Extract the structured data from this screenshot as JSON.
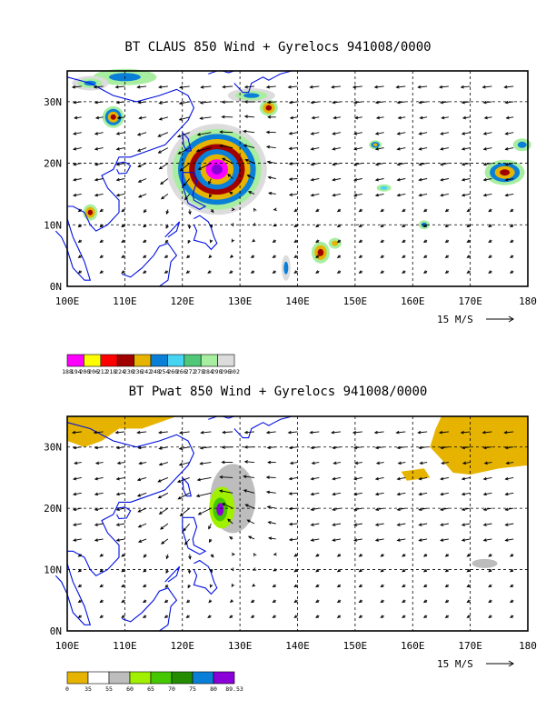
{
  "panels": [
    {
      "title": "BT CLAUS 850 Wind + Gyrelocs 941008/0000",
      "lat_labels": [
        "30N",
        "20N",
        "10N",
        "0N"
      ],
      "lon_labels": [
        "100E",
        "110E",
        "120E",
        "130E",
        "140E",
        "150E",
        "160E",
        "170E",
        "180"
      ],
      "scale_label": "15 M/S",
      "colorbar": {
        "colors": [
          "#ff00ff",
          "#ffff00",
          "#ff0000",
          "#a00000",
          "#e6b400",
          "#0a7fd8",
          "#46d4f2",
          "#50c878",
          "#a8eea0",
          "#dcdcdc"
        ],
        "labels": [
          "188",
          "194",
          "200",
          "206",
          "212",
          "218",
          "224",
          "230",
          "236",
          "242",
          "248",
          "254",
          "260",
          "266",
          "272",
          "278",
          "284",
          "290",
          "296",
          "302"
        ]
      }
    },
    {
      "title": "BT Pwat 850 Wind + Gyrelocs 941008/0000",
      "lat_labels": [
        "30N",
        "20N",
        "10N",
        "0N"
      ],
      "lon_labels": [
        "100E",
        "110E",
        "120E",
        "130E",
        "140E",
        "150E",
        "160E",
        "170E",
        "180"
      ],
      "scale_label": "15 M/S",
      "colorbar": {
        "colors": [
          "#e6b400",
          "#ffffff",
          "#bdbdbd",
          "#a0f000",
          "#46c800",
          "#238c00",
          "#0a7fd8",
          "#8a00d8"
        ],
        "labels": [
          "0",
          "35",
          "55",
          "60",
          "65",
          "70",
          "75",
          "80",
          "89.53"
        ]
      }
    }
  ],
  "map_region": {
    "lon_min": 100,
    "lon_max": 180,
    "lat_min": 0,
    "lat_max": 35
  },
  "gyre_center": {
    "lon": 126,
    "lat": 19
  }
}
